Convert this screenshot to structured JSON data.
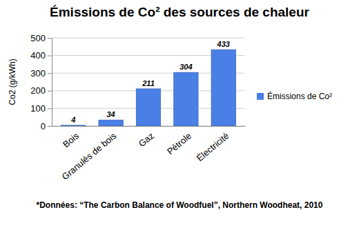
{
  "chart_data": {
    "type": "bar",
    "title": "Émissions de Co² des sources de chaleur",
    "y_label": "Co2 (g/kWh)",
    "categories": [
      "Bois",
      "Granulés de bois",
      "Gaz",
      "Pétrole",
      "Électricité"
    ],
    "series": [
      {
        "name": "Émissions de Co²",
        "color": "#4a7fe6",
        "values": [
          4,
          34,
          211,
          304,
          433
        ]
      }
    ],
    "ylim": [
      0,
      500
    ],
    "yticks": [
      0,
      100,
      200,
      300,
      400,
      500
    ],
    "grid": true,
    "legend": "right",
    "data_labels": true,
    "annotations": [
      "*Données: “The Carbon Balance of Woodfuel”, Northern Woodheat, 2010"
    ]
  }
}
